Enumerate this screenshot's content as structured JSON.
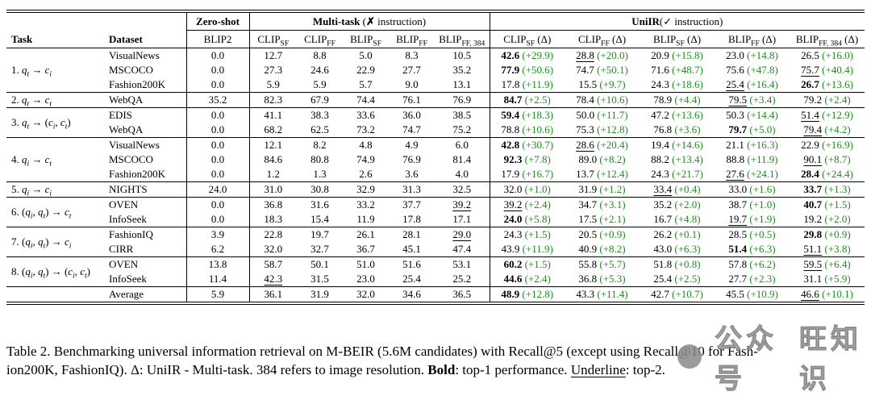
{
  "colors": {
    "delta_green": "#1f8b1f",
    "text": "#000000",
    "rule": "#000000",
    "watermark_gray": "#8a8a8a"
  },
  "header": {
    "task_label": "Task",
    "dataset_label": "Dataset",
    "zeroshot_group": "Zero-shot",
    "zeroshot_col": "BLIP2",
    "multitask_group_bold": "Multi-task",
    "multitask_group_rest_pre": " (",
    "multitask_group_mark": "✗",
    "multitask_group_rest_post": " instruction)",
    "uniir_group_bold": "UniIR",
    "uniir_group_rest_pre": "(",
    "uniir_group_mark": "✓",
    "uniir_group_rest_post": " instruction)",
    "mt_cols": [
      {
        "base": "CLIP",
        "sub": "SF"
      },
      {
        "base": "CLIP",
        "sub": "FF"
      },
      {
        "base": "BLIP",
        "sub": "SF"
      },
      {
        "base": "BLIP",
        "sub": "FF"
      },
      {
        "base": "BLIP",
        "sub": "FF, 384"
      }
    ],
    "ui_cols": [
      {
        "base": "CLIP",
        "sub": "SF",
        "suffix": " (Δ)"
      },
      {
        "base": "CLIP",
        "sub": "FF",
        "suffix": " (Δ)"
      },
      {
        "base": "BLIP",
        "sub": "SF",
        "suffix": " (Δ)"
      },
      {
        "base": "BLIP",
        "sub": "FF",
        "suffix": " (Δ)"
      },
      {
        "base": "BLIP",
        "sub": "FF, 384",
        "suffix": " (Δ)"
      }
    ]
  },
  "groups": [
    {
      "task": [
        [
          "t",
          "1. "
        ],
        [
          "v",
          "q"
        ],
        [
          "s",
          "t"
        ],
        [
          "t",
          " → "
        ],
        [
          "v",
          "c"
        ],
        [
          "s",
          "i"
        ]
      ],
      "rows": [
        {
          "dataset": "VisualNews",
          "zs": "0.0",
          "mt": [
            "12.7",
            "8.8",
            "5.0",
            "8.3",
            "10.5"
          ],
          "ui": [
            {
              "v": "42.6",
              "b": true,
              "d": "+29.9"
            },
            {
              "v": "28.8",
              "u": true,
              "d": "+20.0"
            },
            {
              "v": "20.9",
              "d": "+15.8"
            },
            {
              "v": "23.0",
              "d": "+14.8"
            },
            {
              "v": "26.5",
              "d": "+16.0"
            }
          ]
        },
        {
          "dataset": "MSCOCO",
          "zs": "0.0",
          "mt": [
            "27.3",
            "24.6",
            "22.9",
            "27.7",
            "35.2"
          ],
          "ui": [
            {
              "v": "77.9",
              "b": true,
              "d": "+50.6"
            },
            {
              "v": "74.7",
              "d": "+50.1"
            },
            {
              "v": "71.6",
              "d": "+48.7"
            },
            {
              "v": "75.6",
              "d": "+47.8"
            },
            {
              "v": "75.7",
              "u": true,
              "d": "+40.4"
            }
          ]
        },
        {
          "dataset": "Fashion200K",
          "zs": "0.0",
          "mt": [
            "5.9",
            "5.9",
            "5.7",
            "9.0",
            "13.1"
          ],
          "ui": [
            {
              "v": "17.8",
              "d": "+11.9"
            },
            {
              "v": "15.5",
              "d": "+9.7"
            },
            {
              "v": "24.3",
              "d": "+18.6"
            },
            {
              "v": "25.4",
              "u": true,
              "d": "+16.4"
            },
            {
              "v": "26.7",
              "b": true,
              "d": "+13.6"
            }
          ]
        }
      ]
    },
    {
      "task": [
        [
          "t",
          "2. "
        ],
        [
          "v",
          "q"
        ],
        [
          "s",
          "t"
        ],
        [
          "t",
          " → "
        ],
        [
          "v",
          "c"
        ],
        [
          "s",
          "t"
        ]
      ],
      "rows": [
        {
          "dataset": "WebQA",
          "zs": "35.2",
          "mt": [
            "82.3",
            "67.9",
            "74.4",
            "76.1",
            "76.9"
          ],
          "ui": [
            {
              "v": "84.7",
              "b": true,
              "d": "+2.5"
            },
            {
              "v": "78.4",
              "d": "+10.6"
            },
            {
              "v": "78.9",
              "d": "+4.4"
            },
            {
              "v": "79.5",
              "u": true,
              "d": "+3.4"
            },
            {
              "v": "79.2",
              "d": "+2.4"
            }
          ]
        }
      ]
    },
    {
      "task": [
        [
          "t",
          "3. "
        ],
        [
          "v",
          "q"
        ],
        [
          "s",
          "t"
        ],
        [
          "t",
          " → ("
        ],
        [
          "v",
          "c"
        ],
        [
          "s",
          "i"
        ],
        [
          "t",
          ", "
        ],
        [
          "v",
          "c"
        ],
        [
          "s",
          "t"
        ],
        [
          "t",
          ")"
        ]
      ],
      "rows": [
        {
          "dataset": "EDIS",
          "zs": "0.0",
          "mt": [
            "41.1",
            "38.3",
            "33.6",
            "36.0",
            "38.5"
          ],
          "ui": [
            {
              "v": "59.4",
              "b": true,
              "d": "+18.3"
            },
            {
              "v": "50.0",
              "d": "+11.7"
            },
            {
              "v": "47.2",
              "d": "+13.6"
            },
            {
              "v": "50.3",
              "d": "+14.4"
            },
            {
              "v": "51.4",
              "u": true,
              "d": "+12.9"
            }
          ]
        },
        {
          "dataset": "WebQA",
          "zs": "0.0",
          "mt": [
            "68.2",
            "62.5",
            "73.2",
            "74.7",
            "75.2"
          ],
          "ui": [
            {
              "v": "78.8",
              "d": "+10.6"
            },
            {
              "v": "75.3",
              "d": "+12.8"
            },
            {
              "v": "76.8",
              "d": "+3.6"
            },
            {
              "v": "79.7",
              "b": true,
              "d": "+5.0"
            },
            {
              "v": "79.4",
              "u": true,
              "d": "+4.2"
            }
          ]
        }
      ]
    },
    {
      "task": [
        [
          "t",
          "4. "
        ],
        [
          "v",
          "q"
        ],
        [
          "s",
          "i"
        ],
        [
          "t",
          " → "
        ],
        [
          "v",
          "c"
        ],
        [
          "s",
          "t"
        ]
      ],
      "rows": [
        {
          "dataset": "VisualNews",
          "zs": "0.0",
          "mt": [
            "12.1",
            "8.2",
            "4.8",
            "4.9",
            "6.0"
          ],
          "ui": [
            {
              "v": "42.8",
              "b": true,
              "d": "+30.7"
            },
            {
              "v": "28.6",
              "u": true,
              "d": "+20.4"
            },
            {
              "v": "19.4",
              "d": "+14.6"
            },
            {
              "v": "21.1",
              "d": "+16.3"
            },
            {
              "v": "22.9",
              "d": "+16.9"
            }
          ]
        },
        {
          "dataset": "MSCOCO",
          "zs": "0.0",
          "mt": [
            "84.6",
            "80.8",
            "74.9",
            "76.9",
            "81.4"
          ],
          "ui": [
            {
              "v": "92.3",
              "b": true,
              "d": "+7.8"
            },
            {
              "v": "89.0",
              "d": "+8.2"
            },
            {
              "v": "88.2",
              "d": "+13.4"
            },
            {
              "v": "88.8",
              "d": "+11.9"
            },
            {
              "v": "90.1",
              "u": true,
              "d": "+8.7"
            }
          ]
        },
        {
          "dataset": "Fashion200K",
          "zs": "0.0",
          "mt": [
            "1.2",
            "1.3",
            "2.6",
            "3.6",
            "4.0"
          ],
          "ui": [
            {
              "v": "17.9",
              "d": "+16.7"
            },
            {
              "v": "13.7",
              "d": "+12.4"
            },
            {
              "v": "24.3",
              "d": "+21.7"
            },
            {
              "v": "27.6",
              "u": true,
              "d": "+24.1"
            },
            {
              "v": "28.4",
              "b": true,
              "d": "+24.4"
            }
          ]
        }
      ]
    },
    {
      "task": [
        [
          "t",
          "5. "
        ],
        [
          "v",
          "q"
        ],
        [
          "s",
          "i"
        ],
        [
          "t",
          " → "
        ],
        [
          "v",
          "c"
        ],
        [
          "s",
          "i"
        ]
      ],
      "rows": [
        {
          "dataset": "NIGHTS",
          "zs": "24.0",
          "mt": [
            "31.0",
            "30.8",
            "32.9",
            "31.3",
            "32.5"
          ],
          "ui": [
            {
              "v": "32.0",
              "d": "+1.0"
            },
            {
              "v": "31.9",
              "d": "+1.2"
            },
            {
              "v": "33.4",
              "u": true,
              "d": "+0.4"
            },
            {
              "v": "33.0",
              "d": "+1.6"
            },
            {
              "v": "33.7",
              "b": true,
              "d": "+1.3"
            }
          ]
        }
      ]
    },
    {
      "task": [
        [
          "t",
          "6. ("
        ],
        [
          "v",
          "q"
        ],
        [
          "s",
          "i"
        ],
        [
          "t",
          ", "
        ],
        [
          "v",
          "q"
        ],
        [
          "s",
          "t"
        ],
        [
          "t",
          ") → "
        ],
        [
          "v",
          "c"
        ],
        [
          "s",
          "t"
        ]
      ],
      "rows": [
        {
          "dataset": "OVEN",
          "zs": "0.0",
          "mt": [
            "36.8",
            "31.6",
            "33.2",
            "37.7",
            {
              "v": "39.2",
              "u": true
            }
          ],
          "ui": [
            {
              "v": "39.2",
              "u": true,
              "d": "+2.4"
            },
            {
              "v": "34.7",
              "d": "+3.1"
            },
            {
              "v": "35.2",
              "d": "+2.0"
            },
            {
              "v": "38.7",
              "d": "+1.0"
            },
            {
              "v": "40.7",
              "b": true,
              "d": "+1.5"
            }
          ]
        },
        {
          "dataset": "InfoSeek",
          "zs": "0.0",
          "mt": [
            "18.3",
            "15.4",
            "11.9",
            "17.8",
            "17.1"
          ],
          "ui": [
            {
              "v": "24.0",
              "b": true,
              "d": "+5.8"
            },
            {
              "v": "17.5",
              "d": "+2.1"
            },
            {
              "v": "16.7",
              "d": "+4.8"
            },
            {
              "v": "19.7",
              "u": true,
              "d": "+1.9"
            },
            {
              "v": "19.2",
              "d": "+2.0"
            }
          ]
        }
      ]
    },
    {
      "task": [
        [
          "t",
          "7. ("
        ],
        [
          "v",
          "q"
        ],
        [
          "s",
          "i"
        ],
        [
          "t",
          ", "
        ],
        [
          "v",
          "q"
        ],
        [
          "s",
          "t"
        ],
        [
          "t",
          ") → "
        ],
        [
          "v",
          "c"
        ],
        [
          "s",
          "i"
        ]
      ],
      "rows": [
        {
          "dataset": "FashionIQ",
          "zs": "3.9",
          "mt": [
            "22.8",
            "19.7",
            "26.1",
            "28.1",
            {
              "v": "29.0",
              "u": true
            }
          ],
          "ui": [
            {
              "v": "24.3",
              "d": "+1.5"
            },
            {
              "v": "20.5",
              "d": "+0.9"
            },
            {
              "v": "26.2",
              "d": "+0.1"
            },
            {
              "v": "28.5",
              "d": "+0.5"
            },
            {
              "v": "29.8",
              "b": true,
              "d": "+0.9"
            }
          ]
        },
        {
          "dataset": "CIRR",
          "zs": "6.2",
          "mt": [
            "32.0",
            "32.7",
            "36.7",
            "45.1",
            "47.4"
          ],
          "ui": [
            {
              "v": "43.9",
              "d": "+11.9"
            },
            {
              "v": "40.9",
              "d": "+8.2"
            },
            {
              "v": "43.0",
              "d": "+6.3"
            },
            {
              "v": "51.4",
              "b": true,
              "d": "+6.3"
            },
            {
              "v": "51.1",
              "u": true,
              "d": "+3.8"
            }
          ]
        }
      ]
    },
    {
      "task": [
        [
          "t",
          "8. ("
        ],
        [
          "v",
          "q"
        ],
        [
          "s",
          "i"
        ],
        [
          "t",
          ", "
        ],
        [
          "v",
          "q"
        ],
        [
          "s",
          "t"
        ],
        [
          "t",
          ") → ("
        ],
        [
          "v",
          "c"
        ],
        [
          "s",
          "i"
        ],
        [
          "t",
          ", "
        ],
        [
          "v",
          "c"
        ],
        [
          "s",
          "t"
        ],
        [
          "t",
          ")"
        ]
      ],
      "rows": [
        {
          "dataset": "OVEN",
          "zs": "13.8",
          "mt": [
            "58.7",
            "50.1",
            "51.0",
            "51.6",
            "53.1"
          ],
          "ui": [
            {
              "v": "60.2",
              "b": true,
              "d": "+1.5"
            },
            {
              "v": "55.8",
              "d": "+5.7"
            },
            {
              "v": "51.8",
              "d": "+0.8"
            },
            {
              "v": "57.8",
              "d": "+6.2"
            },
            {
              "v": "59.5",
              "u": true,
              "d": "+6.4"
            }
          ]
        },
        {
          "dataset": "InfoSeek",
          "zs": "11.4",
          "mt": [
            {
              "v": "42.3",
              "u": true
            },
            "31.5",
            "23.0",
            "25.4",
            "25.2"
          ],
          "ui": [
            {
              "v": "44.6",
              "b": true,
              "d": "+2.4"
            },
            {
              "v": "36.8",
              "d": "+5.3"
            },
            {
              "v": "25.4",
              "d": "+2.5"
            },
            {
              "v": "27.7",
              "d": "+2.3"
            },
            {
              "v": "31.1",
              "d": "+5.9"
            }
          ]
        }
      ]
    },
    {
      "task": [],
      "rows": [
        {
          "dataset": "Average",
          "zs": "5.9",
          "mt": [
            "36.1",
            "31.9",
            "32.0",
            "34.6",
            "36.5"
          ],
          "ui": [
            {
              "v": "48.9",
              "b": true,
              "d": "+12.8"
            },
            {
              "v": "43.3",
              "d": "+11.4"
            },
            {
              "v": "42.7",
              "d": "+10.7"
            },
            {
              "v": "45.5",
              "d": "+10.9"
            },
            {
              "v": "46.6",
              "u": true,
              "d": "+10.1"
            }
          ]
        }
      ]
    }
  ],
  "caption": {
    "line1": "Table 2. Benchmarking universal information retrieval on M-BEIR (5.6M candidates) with Recall@5 (except using Recall@10 for Fash-",
    "line2_prefix": "ion200K, FashionIQ). Δ: UniIR - Multi-task. 384 refers to image resolution. ",
    "bold_word": "Bold",
    "bold_rest": ": top-1 performance. ",
    "underline_word": "Underline",
    "underline_rest": ": top-2."
  },
  "watermark": {
    "text1": "公众号",
    "text2": "旺知识"
  }
}
